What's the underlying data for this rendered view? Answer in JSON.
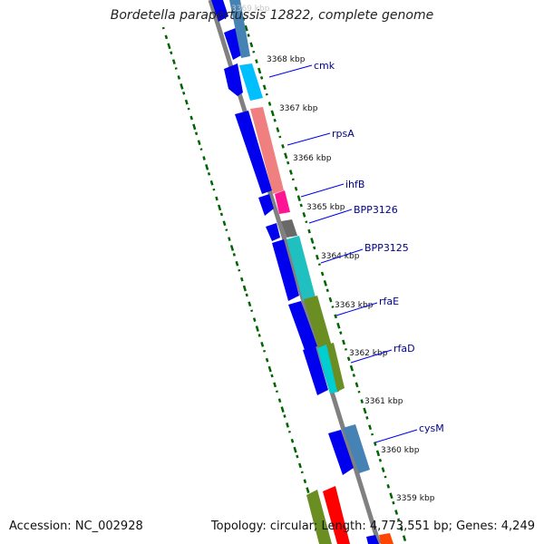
{
  "title": "Bordetella parapertussis 12822, complete genome",
  "footer": {
    "accession": "Accession: NC_002928",
    "summary": "Topology: circular; Length: 4,773,551 bp; Genes: 4,249"
  },
  "ticks": [
    "3369 kbp",
    "3368 kbp",
    "3367 kbp",
    "3366 kbp",
    "3365 kbp",
    "3364 kbp",
    "3363 kbp",
    "3362 kbp",
    "3361 kbp",
    "3360 kbp",
    "3359 kbp"
  ],
  "genes": [
    {
      "name": "cmk"
    },
    {
      "name": "rpsA"
    },
    {
      "name": "ihfB"
    },
    {
      "name": "BPP3126"
    },
    {
      "name": "BPP3125"
    },
    {
      "name": "rfaE"
    },
    {
      "name": "rfaD"
    },
    {
      "name": "cysM"
    }
  ],
  "colors": {
    "backbone": "#808080",
    "gc_skew": "#006400",
    "cds": "#0000ee",
    "label": "#00008b"
  }
}
